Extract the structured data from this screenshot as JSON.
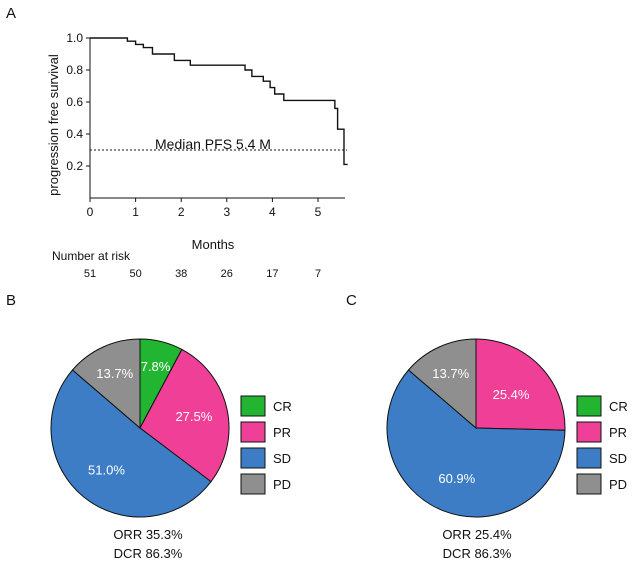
{
  "panel_letters": {
    "a": "A",
    "b": "B",
    "c": "C"
  },
  "chart_data": [
    {
      "type": "line",
      "subtype": "step",
      "panel": "A",
      "xlabel": "Months",
      "ylabel": "progression free survival",
      "xlim": [
        0,
        5.6
      ],
      "ylim": [
        0.0,
        1.0
      ],
      "xticks": [
        "0",
        "1",
        "2",
        "3",
        "4",
        "5"
      ],
      "yticks": [
        "0.2",
        "0.4",
        "0.6",
        "0.8",
        "1.0"
      ],
      "grid": false,
      "series": [
        {
          "x": [
            0,
            0.82,
            1.0,
            1.17,
            1.37,
            1.85,
            2.2,
            3.4,
            3.55,
            3.8,
            3.95,
            4.05,
            4.25,
            5.37,
            5.43,
            5.57
          ],
          "y": [
            1.0,
            0.98,
            0.96,
            0.94,
            0.9,
            0.86,
            0.83,
            0.8,
            0.76,
            0.73,
            0.69,
            0.65,
            0.61,
            0.56,
            0.43,
            0.21
          ]
        }
      ],
      "median_line": {
        "y": 0.3,
        "label": "Median PFS 5.4 M",
        "style": "dotted"
      },
      "risk_table": {
        "label": "Number at  risk",
        "x": [
          0,
          1,
          2,
          3,
          4,
          5
        ],
        "values": [
          "51",
          "50",
          "38",
          "26",
          "17",
          "7"
        ]
      }
    },
    {
      "type": "pie",
      "panel": "B",
      "slices": [
        {
          "name": "CR",
          "value": 7.8,
          "label": "7.8%",
          "color": "#22b532"
        },
        {
          "name": "PR",
          "value": 27.5,
          "label": "27.5%",
          "color": "#ef3f97"
        },
        {
          "name": "SD",
          "value": 51.0,
          "label": "51.0%",
          "color": "#3d7dc5"
        },
        {
          "name": "PD",
          "value": 13.7,
          "label": "13.7%",
          "color": "#8f8f8f"
        }
      ],
      "legend": {
        "placement": "right",
        "entries": [
          "CR",
          "PR",
          "SD",
          "PD"
        ]
      },
      "summary": [
        "ORR 35.3%",
        "DCR 86.3%"
      ]
    },
    {
      "type": "pie",
      "panel": "C",
      "slices": [
        {
          "name": "PR",
          "value": 25.4,
          "label": "25.4%",
          "color": "#ef3f97"
        },
        {
          "name": "SD",
          "value": 60.9,
          "label": "60.9%",
          "color": "#3d7dc5"
        },
        {
          "name": "PD",
          "value": 13.7,
          "label": "13.7%",
          "color": "#8f8f8f"
        }
      ],
      "legend": {
        "placement": "right",
        "entries": [
          "CR",
          "PR",
          "SD",
          "PD"
        ]
      },
      "summary": [
        "ORR 25.4%",
        "DCR 86.3%"
      ]
    }
  ],
  "legend_colors": {
    "CR": "#22b532",
    "PR": "#ef3f97",
    "SD": "#3d7dc5",
    "PD": "#8f8f8f"
  }
}
